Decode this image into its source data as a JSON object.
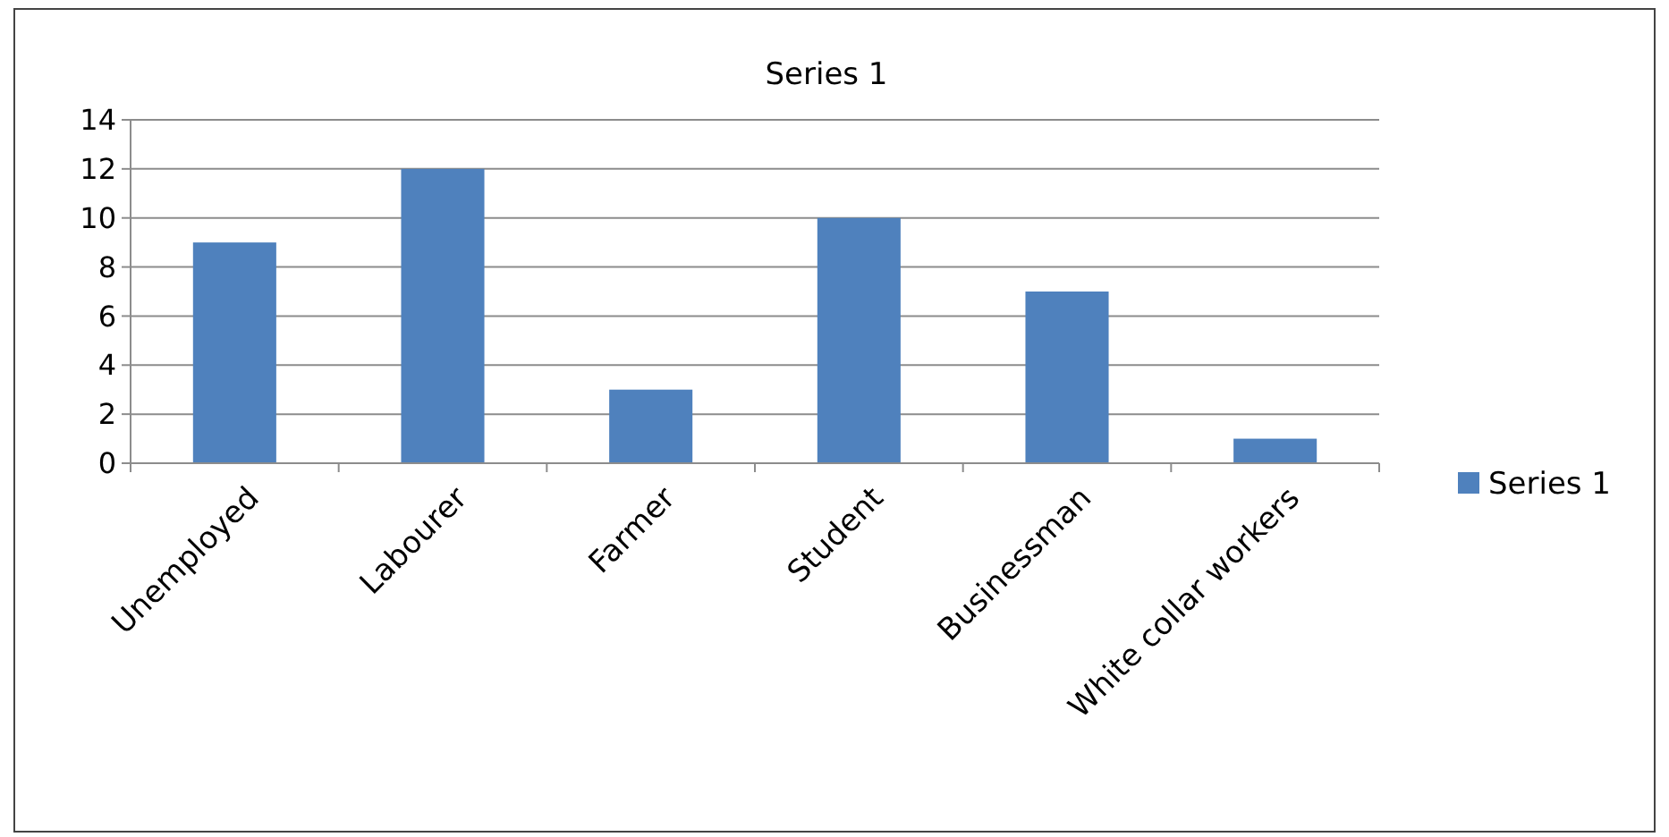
{
  "chart_data": {
    "type": "bar",
    "title": "Series 1",
    "categories": [
      "Unemployed",
      "Labourer",
      "Farmer",
      "Student",
      "Businessman",
      "White collar workers"
    ],
    "series": [
      {
        "name": "Series 1",
        "color": "#4f81bd",
        "values": [
          9,
          12,
          3,
          10,
          7,
          1
        ]
      }
    ],
    "ylim": [
      0,
      14
    ],
    "yticks": [
      0,
      2,
      4,
      6,
      8,
      10,
      12,
      14
    ],
    "grid": "y",
    "legend": "right"
  }
}
